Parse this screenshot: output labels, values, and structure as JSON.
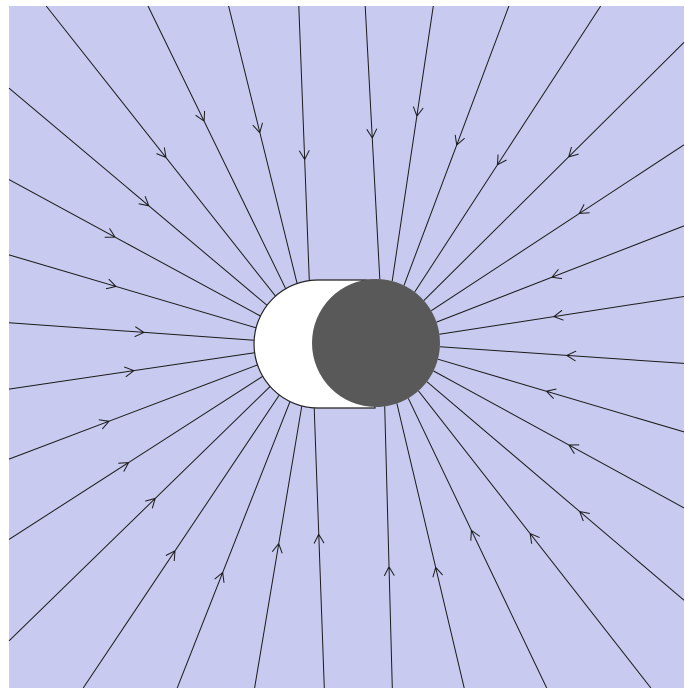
{
  "diagram": {
    "type": "field-lines",
    "colors": {
      "background": "#c8caf0",
      "page": "#ffffff",
      "line": "#1a1a1a",
      "capsule_fill": "#ffffff",
      "capsule_stroke": "#222222",
      "disk_fill": "#595959"
    },
    "field_line_count": 32,
    "arrow_direction": "inward"
  }
}
